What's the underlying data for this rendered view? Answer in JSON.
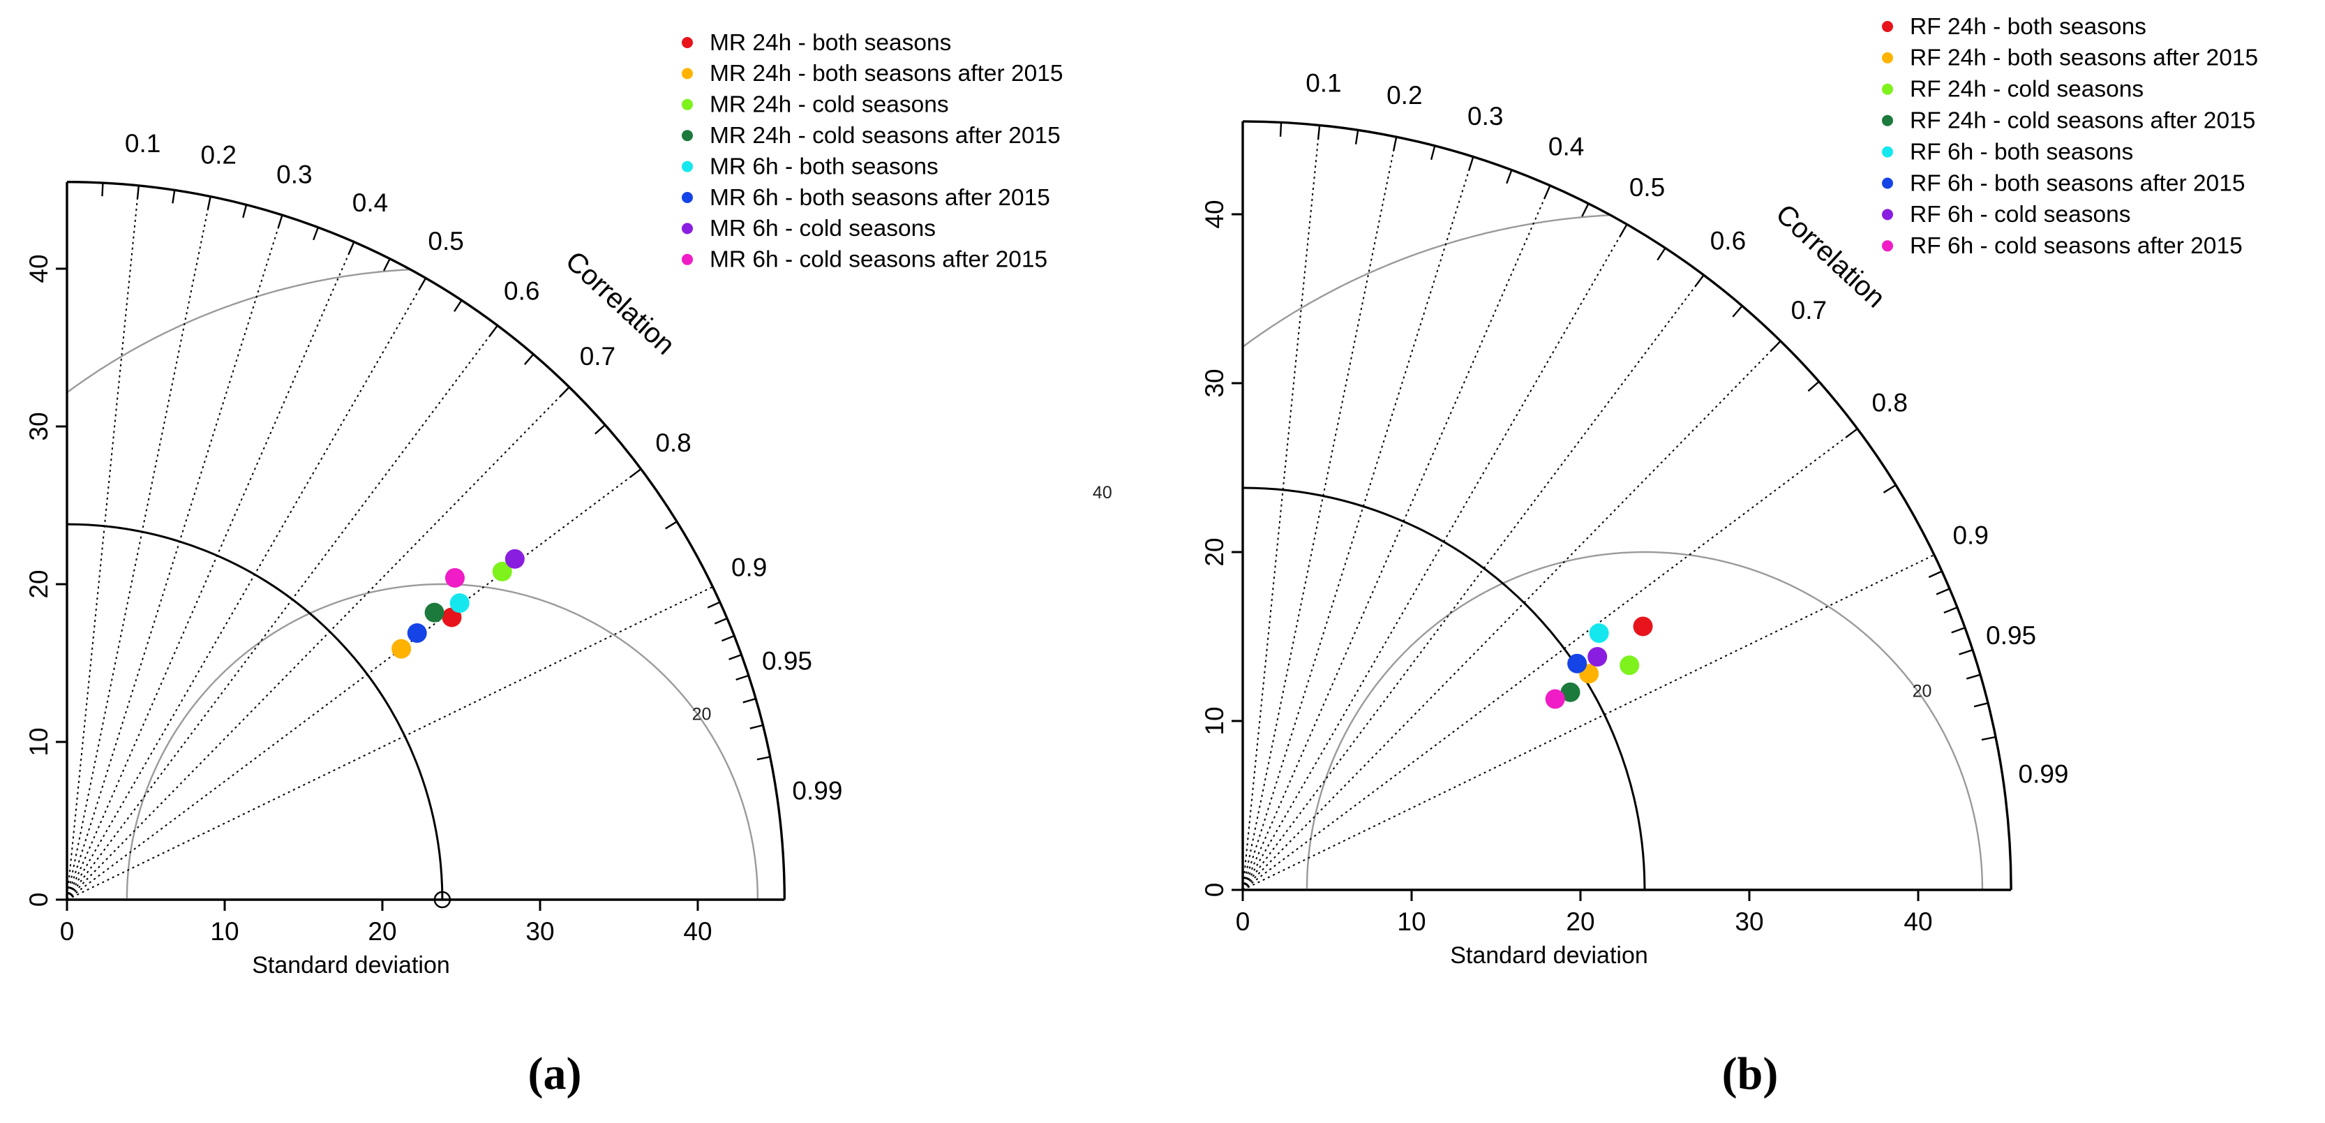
{
  "chart_data": [
    {
      "type": "scatter",
      "subtype": "taylor-diagram",
      "panel_label": "(a)",
      "xlabel": "Standard deviation",
      "axis_label": "Correlation",
      "sd_ticks": [
        0,
        10,
        20,
        30,
        40
      ],
      "sd_max": 45.5,
      "reference_sd": 23.8,
      "rmsd_contours": [
        20,
        40
      ],
      "correlation_labels": [
        "0.1",
        "0.2",
        "0.3",
        "0.4",
        "0.5",
        "0.6",
        "0.7",
        "0.8",
        "0.9",
        "0.95",
        "0.99"
      ],
      "correlation_values": [
        0.1,
        0.2,
        0.3,
        0.4,
        0.5,
        0.6,
        0.7,
        0.8,
        0.9,
        0.95,
        0.99
      ],
      "series": [
        {
          "name": "MR 24h - both seasons",
          "color": "#e8141b",
          "sd_x": 24.4,
          "sd_y": 17.9
        },
        {
          "name": "MR 24h - both seasons after 2015",
          "color": "#ffb300",
          "sd_x": 21.2,
          "sd_y": 15.9
        },
        {
          "name": "MR 24h - cold seasons",
          "color": "#7ef21c",
          "sd_x": 27.6,
          "sd_y": 20.8
        },
        {
          "name": "MR 24h - cold seasons after 2015",
          "color": "#1c7a3c",
          "sd_x": 23.3,
          "sd_y": 18.2
        },
        {
          "name": "MR 6h - both seasons",
          "color": "#14e8ee",
          "sd_x": 24.9,
          "sd_y": 18.8
        },
        {
          "name": "MR 6h - both seasons after 2015",
          "color": "#1544e6",
          "sd_x": 22.2,
          "sd_y": 16.9
        },
        {
          "name": "MR 6h - cold seasons",
          "color": "#8a1ee0",
          "sd_x": 28.4,
          "sd_y": 21.6
        },
        {
          "name": "MR 6h - cold seasons after 2015",
          "color": "#f01cc5",
          "sd_x": 24.6,
          "sd_y": 20.4
        }
      ]
    },
    {
      "type": "scatter",
      "subtype": "taylor-diagram",
      "panel_label": "(b)",
      "xlabel": "Standard deviation",
      "axis_label": "Correlation",
      "sd_ticks": [
        0,
        10,
        20,
        30,
        40
      ],
      "sd_max": 45.5,
      "reference_sd": 23.8,
      "rmsd_contours": [
        20,
        40
      ],
      "correlation_labels": [
        "0.1",
        "0.2",
        "0.3",
        "0.4",
        "0.5",
        "0.6",
        "0.7",
        "0.8",
        "0.9",
        "0.95",
        "0.99"
      ],
      "correlation_values": [
        0.1,
        0.2,
        0.3,
        0.4,
        0.5,
        0.6,
        0.7,
        0.8,
        0.9,
        0.95,
        0.99
      ],
      "series": [
        {
          "name": "RF 24h - both seasons",
          "color": "#e8141b",
          "sd_x": 23.7,
          "sd_y": 15.6
        },
        {
          "name": "RF 24h - both seasons after 2015",
          "color": "#ffb300",
          "sd_x": 20.5,
          "sd_y": 12.8
        },
        {
          "name": "RF 24h - cold seasons",
          "color": "#7ef21c",
          "sd_x": 22.9,
          "sd_y": 13.3
        },
        {
          "name": "RF 24h - cold seasons after 2015",
          "color": "#1c7a3c",
          "sd_x": 19.4,
          "sd_y": 11.7
        },
        {
          "name": "RF 6h - both seasons",
          "color": "#14e8ee",
          "sd_x": 21.1,
          "sd_y": 15.2
        },
        {
          "name": "RF 6h - both seasons after 2015",
          "color": "#1544e6",
          "sd_x": 19.8,
          "sd_y": 13.4
        },
        {
          "name": "RF 6h - cold seasons",
          "color": "#8a1ee0",
          "sd_x": 21.0,
          "sd_y": 13.8
        },
        {
          "name": "RF 6h - cold seasons after 2015",
          "color": "#f01cc5",
          "sd_x": 18.5,
          "sd_y": 11.3
        }
      ]
    }
  ]
}
